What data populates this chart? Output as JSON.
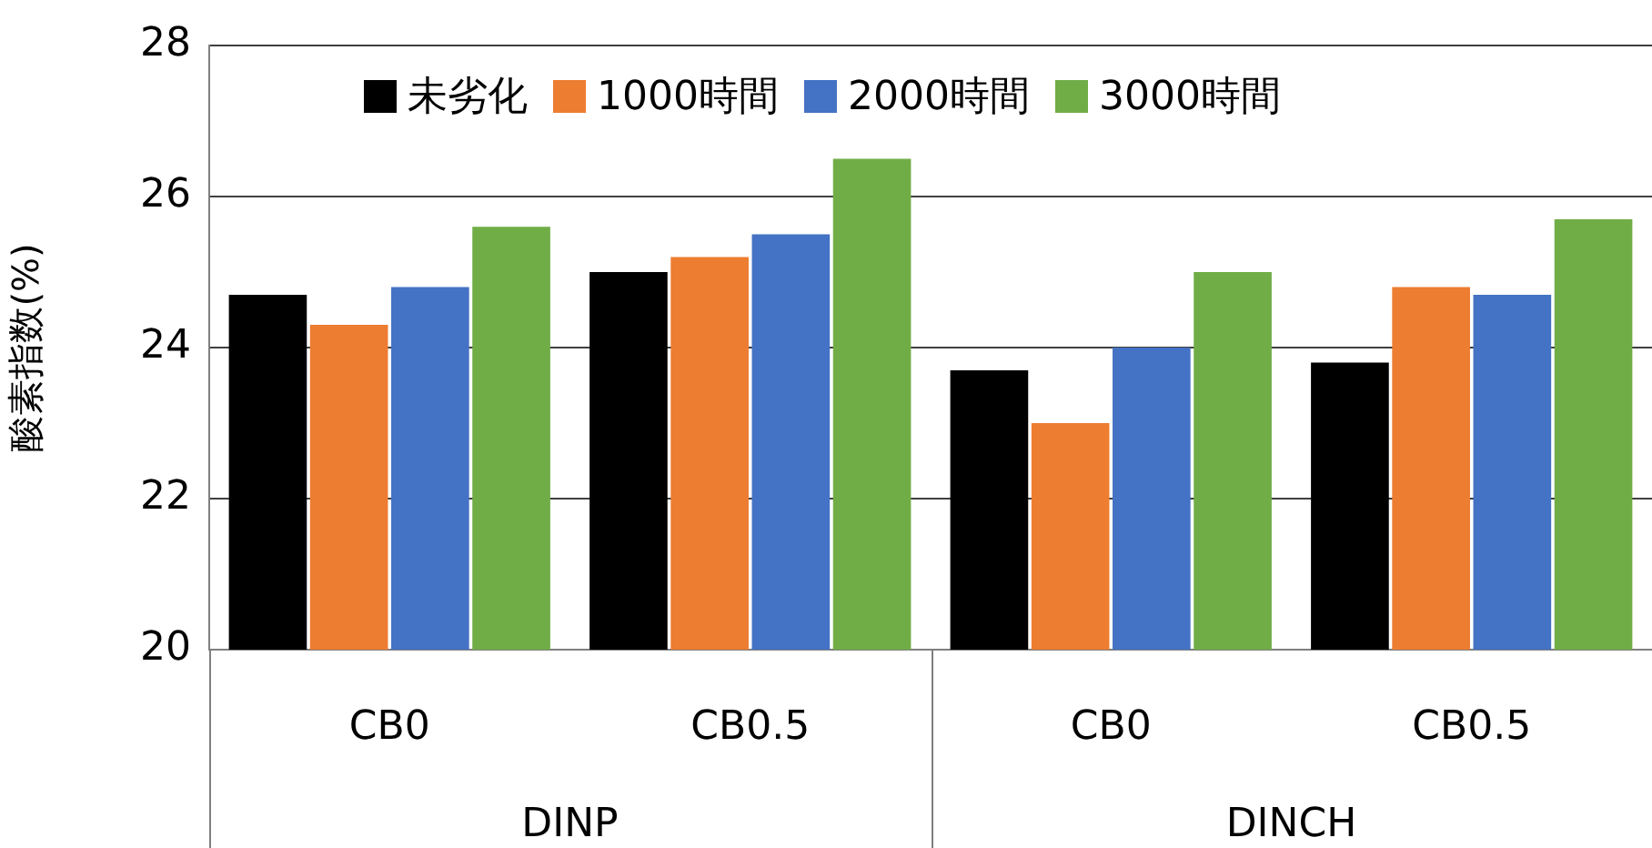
{
  "chart_data": {
    "type": "bar",
    "ylabel": "酸素指数(%)",
    "categories": [
      "CB0",
      "CB0.5",
      "CB0",
      "CB0.5"
    ],
    "series": [
      {
        "name": "未劣化",
        "color": "#000000",
        "values": [
          24.7,
          25.0,
          23.7,
          23.8
        ]
      },
      {
        "name": "1000時間",
        "color": "#ed7d31",
        "values": [
          24.3,
          25.2,
          23.0,
          24.8
        ]
      },
      {
        "name": "2000時間",
        "color": "#4472c4",
        "values": [
          24.8,
          25.5,
          24.0,
          24.7
        ]
      },
      {
        "name": "3000時間",
        "color": "#70ad47",
        "values": [
          25.6,
          26.5,
          25.0,
          25.7
        ]
      }
    ],
    "annotations": [
      "DINP",
      "DINCH"
    ],
    "ylim": [
      20,
      28
    ],
    "yticks": [
      20,
      22,
      24,
      26,
      28
    ],
    "grid": "y",
    "legend": "top"
  }
}
